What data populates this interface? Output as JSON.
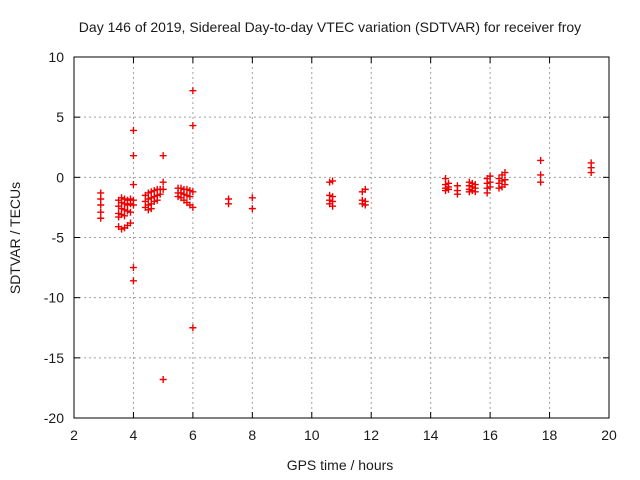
{
  "chart_data": {
    "type": "scatter",
    "title": "Day 146 of 2019, Sidereal Day-to-day VTEC variation (SDTVAR) for receiver froy",
    "xlabel": "GPS time / hours",
    "ylabel": "SDTVAR / TECUs",
    "xlim": [
      2,
      20
    ],
    "ylim": [
      -20,
      10
    ],
    "xticks": [
      2,
      4,
      6,
      8,
      10,
      12,
      14,
      16,
      18,
      20
    ],
    "yticks": [
      -20,
      -15,
      -10,
      -5,
      0,
      5,
      10
    ],
    "grid": true,
    "marker": "plus",
    "color": "#ee0000",
    "series": [
      {
        "name": "SDTVAR",
        "points": [
          [
            2.9,
            -1.3
          ],
          [
            2.9,
            -1.8
          ],
          [
            2.9,
            -2.3
          ],
          [
            2.9,
            -2.9
          ],
          [
            2.9,
            -3.4
          ],
          [
            3.5,
            -1.9
          ],
          [
            3.5,
            -2.4
          ],
          [
            3.5,
            -3.0
          ],
          [
            3.5,
            -3.3
          ],
          [
            3.5,
            -4.1
          ],
          [
            3.6,
            -1.7
          ],
          [
            3.6,
            -2.1
          ],
          [
            3.6,
            -2.6
          ],
          [
            3.6,
            -3.1
          ],
          [
            3.6,
            -4.3
          ],
          [
            3.7,
            -1.8
          ],
          [
            3.7,
            -2.2
          ],
          [
            3.7,
            -2.7
          ],
          [
            3.7,
            -3.2
          ],
          [
            3.7,
            -4.2
          ],
          [
            3.8,
            -1.9
          ],
          [
            3.8,
            -2.3
          ],
          [
            3.8,
            -2.8
          ],
          [
            3.8,
            -4.0
          ],
          [
            3.9,
            -1.8
          ],
          [
            3.9,
            -2.2
          ],
          [
            3.9,
            -2.9
          ],
          [
            3.9,
            -3.8
          ],
          [
            4.0,
            3.9
          ],
          [
            4.0,
            1.8
          ],
          [
            4.0,
            -0.6
          ],
          [
            4.0,
            -1.9
          ],
          [
            4.0,
            -2.3
          ],
          [
            4.0,
            -7.5
          ],
          [
            4.0,
            -8.6
          ],
          [
            4.4,
            -1.5
          ],
          [
            4.4,
            -2.0
          ],
          [
            4.4,
            -2.5
          ],
          [
            4.5,
            -1.3
          ],
          [
            4.5,
            -1.8
          ],
          [
            4.5,
            -2.3
          ],
          [
            4.5,
            -2.7
          ],
          [
            4.6,
            -1.2
          ],
          [
            4.6,
            -1.7
          ],
          [
            4.6,
            -2.2
          ],
          [
            4.6,
            -2.6
          ],
          [
            4.7,
            -1.1
          ],
          [
            4.7,
            -1.6
          ],
          [
            4.7,
            -2.0
          ],
          [
            4.8,
            -1.0
          ],
          [
            4.8,
            -1.5
          ],
          [
            4.8,
            -1.9
          ],
          [
            4.9,
            -1.0
          ],
          [
            4.9,
            -1.4
          ],
          [
            5.0,
            1.8
          ],
          [
            5.0,
            -0.4
          ],
          [
            5.0,
            -1.0
          ],
          [
            5.0,
            -16.8
          ],
          [
            5.5,
            -0.9
          ],
          [
            5.5,
            -1.3
          ],
          [
            5.5,
            -1.6
          ],
          [
            5.6,
            -0.9
          ],
          [
            5.6,
            -1.3
          ],
          [
            5.6,
            -1.7
          ],
          [
            5.7,
            -1.0
          ],
          [
            5.7,
            -1.4
          ],
          [
            5.7,
            -1.9
          ],
          [
            5.8,
            -1.0
          ],
          [
            5.8,
            -1.5
          ],
          [
            5.8,
            -2.1
          ],
          [
            5.9,
            -1.1
          ],
          [
            5.9,
            -1.6
          ],
          [
            5.9,
            -2.3
          ],
          [
            6.0,
            7.2
          ],
          [
            6.0,
            4.3
          ],
          [
            6.0,
            -1.2
          ],
          [
            6.0,
            -2.5
          ],
          [
            6.0,
            -12.5
          ],
          [
            7.2,
            -1.8
          ],
          [
            7.2,
            -2.2
          ],
          [
            8.0,
            -1.7
          ],
          [
            8.0,
            -2.6
          ],
          [
            10.6,
            -0.4
          ],
          [
            10.6,
            -1.5
          ],
          [
            10.6,
            -1.9
          ],
          [
            10.6,
            -2.2
          ],
          [
            10.7,
            -0.3
          ],
          [
            10.7,
            -1.6
          ],
          [
            10.7,
            -2.0
          ],
          [
            10.7,
            -2.4
          ],
          [
            11.7,
            -1.2
          ],
          [
            11.7,
            -1.9
          ],
          [
            11.7,
            -2.2
          ],
          [
            11.8,
            -1.0
          ],
          [
            11.8,
            -2.0
          ],
          [
            11.8,
            -2.3
          ],
          [
            14.5,
            -0.1
          ],
          [
            14.5,
            -0.6
          ],
          [
            14.5,
            -0.9
          ],
          [
            14.5,
            -1.1
          ],
          [
            14.6,
            -0.5
          ],
          [
            14.6,
            -0.8
          ],
          [
            14.6,
            -1.0
          ],
          [
            14.9,
            -0.7
          ],
          [
            14.9,
            -1.1
          ],
          [
            14.9,
            -1.4
          ],
          [
            15.3,
            -0.4
          ],
          [
            15.3,
            -0.7
          ],
          [
            15.3,
            -1.0
          ],
          [
            15.3,
            -1.2
          ],
          [
            15.4,
            -0.5
          ],
          [
            15.4,
            -0.8
          ],
          [
            15.4,
            -1.1
          ],
          [
            15.5,
            -0.6
          ],
          [
            15.5,
            -0.9
          ],
          [
            15.5,
            -1.2
          ],
          [
            15.9,
            -0.1
          ],
          [
            15.9,
            -0.5
          ],
          [
            15.9,
            -0.9
          ],
          [
            15.9,
            -1.3
          ],
          [
            16.0,
            0.1
          ],
          [
            16.0,
            -0.4
          ],
          [
            16.0,
            -0.8
          ],
          [
            16.3,
            -0.1
          ],
          [
            16.3,
            -0.5
          ],
          [
            16.3,
            -0.9
          ],
          [
            16.4,
            0.2
          ],
          [
            16.4,
            -0.3
          ],
          [
            16.4,
            -0.8
          ],
          [
            16.5,
            0.4
          ],
          [
            16.5,
            -0.2
          ],
          [
            16.5,
            -0.6
          ],
          [
            17.7,
            1.4
          ],
          [
            17.7,
            0.2
          ],
          [
            17.7,
            -0.4
          ],
          [
            19.4,
            1.2
          ],
          [
            19.4,
            0.8
          ],
          [
            19.4,
            0.4
          ]
        ]
      }
    ]
  }
}
